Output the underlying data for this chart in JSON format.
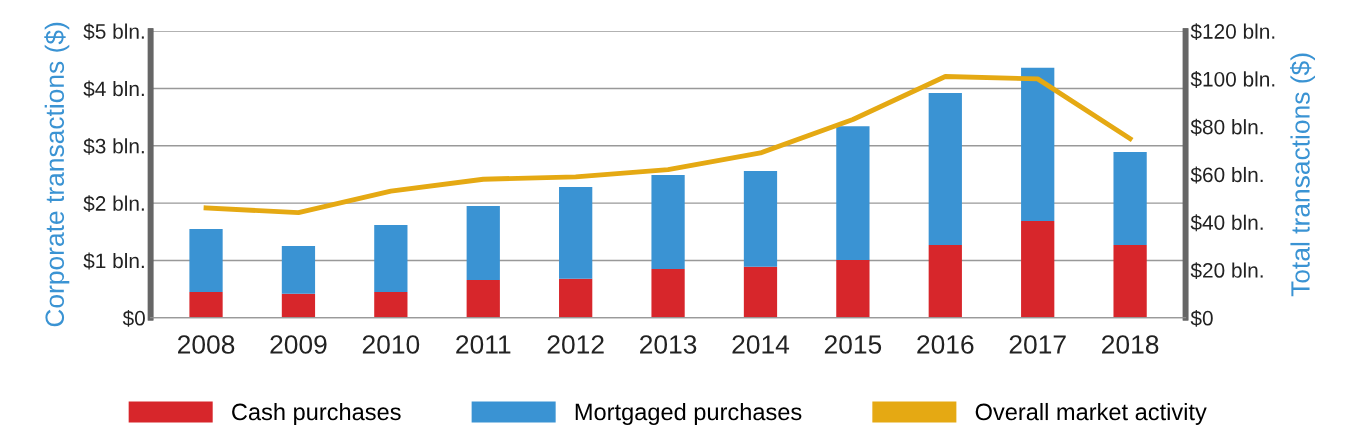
{
  "chart_data": {
    "type": "bar",
    "stacked": true,
    "categories": [
      "2008",
      "2009",
      "2010",
      "2011",
      "2012",
      "2013",
      "2014",
      "2015",
      "2016",
      "2017",
      "2018"
    ],
    "ylabel": "Corporate transactions ($)",
    "y2label": "Total transactions ($)",
    "ylim": [
      0,
      5
    ],
    "yticks": [
      {
        "value": 0,
        "label": "$0"
      },
      {
        "value": 1,
        "label": "$1 bln."
      },
      {
        "value": 2,
        "label": "$2 bln."
      },
      {
        "value": 3,
        "label": "$3 bln."
      },
      {
        "value": 4,
        "label": "$4 bln."
      },
      {
        "value": 5,
        "label": "$5 bln."
      }
    ],
    "y2lim": [
      0,
      120
    ],
    "y2ticks": [
      {
        "value": 0,
        "label": "$0"
      },
      {
        "value": 20,
        "label": "$20 bln."
      },
      {
        "value": 40,
        "label": "$40 bln."
      },
      {
        "value": 60,
        "label": "$60 bln."
      },
      {
        "value": 80,
        "label": "$80 bln."
      },
      {
        "value": 100,
        "label": "$100 bln."
      },
      {
        "value": 120,
        "label": "$120 bln."
      }
    ],
    "grid": "y",
    "legend": "bottom",
    "series": [
      {
        "name": "Cash purchases",
        "color": "#d7262b",
        "values": [
          0.45,
          0.42,
          0.45,
          0.66,
          0.68,
          0.85,
          0.89,
          1.01,
          1.27,
          1.69,
          1.27
        ]
      },
      {
        "name": "Mortgaged purchases",
        "color": "#3a93d3",
        "values": [
          1.1,
          0.83,
          1.17,
          1.29,
          1.6,
          1.64,
          1.67,
          2.33,
          2.65,
          2.67,
          1.62
        ]
      },
      {
        "name": "Overall market activity",
        "type": "line",
        "axis": "y2",
        "color": "#e5a913",
        "values": [
          46,
          44,
          53,
          58,
          59,
          62,
          69,
          83,
          101,
          100,
          75
        ]
      }
    ]
  }
}
